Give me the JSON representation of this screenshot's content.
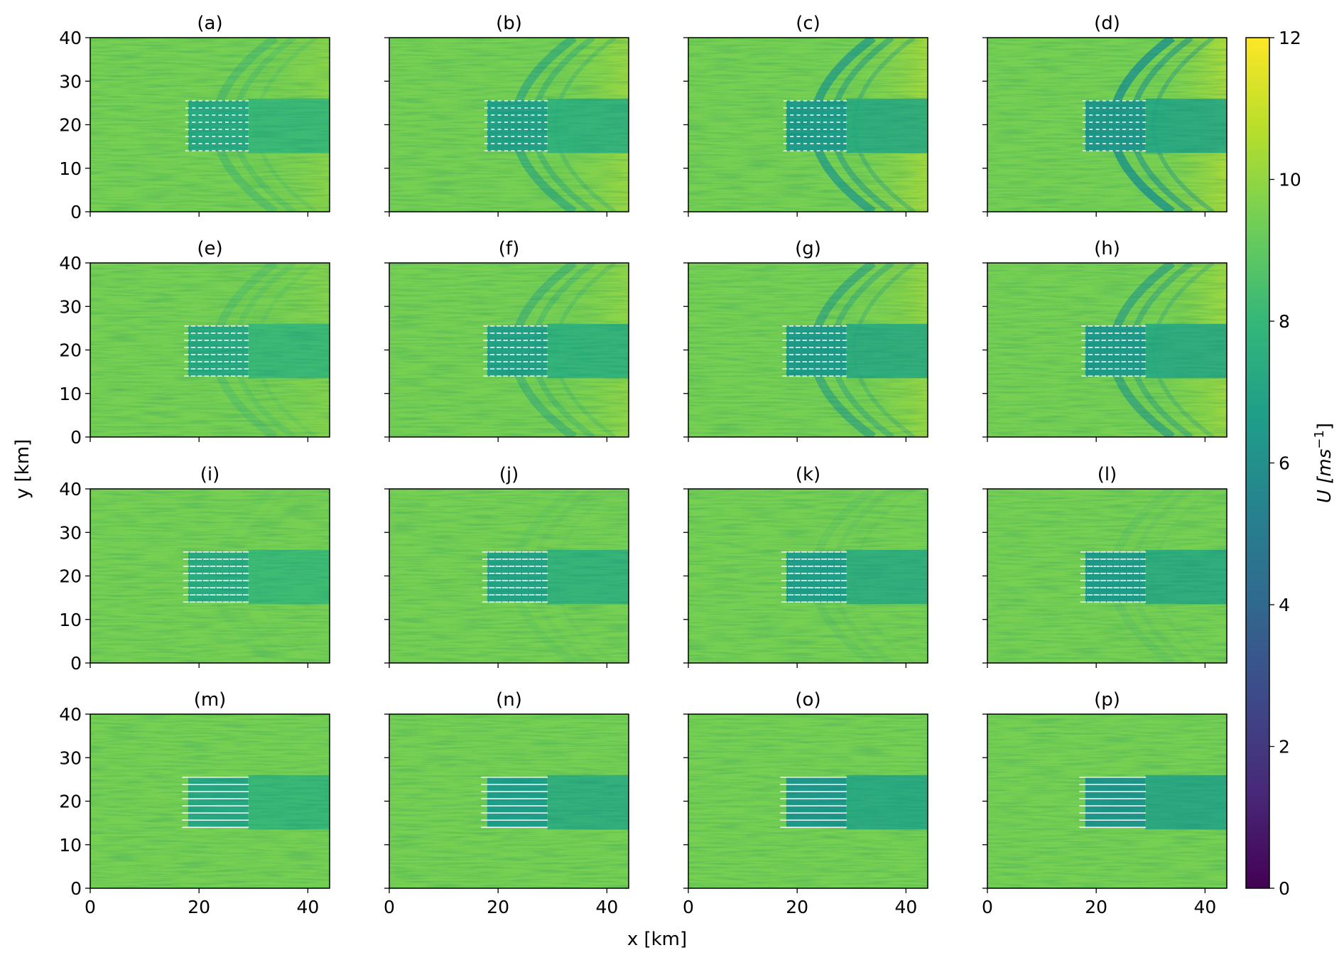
{
  "chart_data": {
    "type": "heatmap",
    "description_kind": "small-multiples",
    "grid": false,
    "xlabel": "x [km]",
    "ylabel": "y [km]",
    "xlim": [
      0,
      44
    ],
    "ylim": [
      0,
      40
    ],
    "x_ticks": [
      0,
      20,
      40
    ],
    "y_ticks": [
      0,
      10,
      20,
      30,
      40
    ],
    "colorbar": {
      "label": "U [ms-1]",
      "label_base": "U",
      "label_unit_main": "ms",
      "label_unit_exp": "−1",
      "range": [
        0,
        12
      ],
      "ticks": [
        0,
        2,
        4,
        6,
        8,
        10,
        12
      ],
      "colormap": "viridis",
      "stops": [
        "#440154",
        "#482878",
        "#3e4989",
        "#31688e",
        "#26828e",
        "#1f9e89",
        "#35b779",
        "#6ece58",
        "#b5de2b",
        "#fde725"
      ]
    },
    "farm": {
      "x_range": [
        18,
        29
      ],
      "y_range": [
        14,
        25.5
      ],
      "cols": 10,
      "rows": 8
    },
    "background_speed": 9.5,
    "panels": [
      {
        "label": "(a)",
        "row": 0,
        "col": 0,
        "wake_speed": 7.6,
        "wave_strength": 0.35
      },
      {
        "label": "(b)",
        "row": 0,
        "col": 1,
        "wake_speed": 7.2,
        "wave_strength": 0.6
      },
      {
        "label": "(c)",
        "row": 0,
        "col": 2,
        "wake_speed": 6.9,
        "wave_strength": 0.8
      },
      {
        "label": "(d)",
        "row": 0,
        "col": 3,
        "wake_speed": 6.7,
        "wave_strength": 0.9
      },
      {
        "label": "(e)",
        "row": 1,
        "col": 0,
        "wake_speed": 7.6,
        "wave_strength": 0.25
      },
      {
        "label": "(f)",
        "row": 1,
        "col": 1,
        "wake_speed": 7.2,
        "wave_strength": 0.45
      },
      {
        "label": "(g)",
        "row": 1,
        "col": 2,
        "wake_speed": 6.9,
        "wave_strength": 0.6
      },
      {
        "label": "(h)",
        "row": 1,
        "col": 3,
        "wake_speed": 6.8,
        "wave_strength": 0.65
      },
      {
        "label": "(i)",
        "row": 2,
        "col": 0,
        "wake_speed": 7.7,
        "wave_strength": 0.05
      },
      {
        "label": "(j)",
        "row": 2,
        "col": 1,
        "wake_speed": 7.3,
        "wave_strength": 0.1
      },
      {
        "label": "(k)",
        "row": 2,
        "col": 2,
        "wake_speed": 7.0,
        "wave_strength": 0.12
      },
      {
        "label": "(l)",
        "row": 2,
        "col": 3,
        "wake_speed": 6.9,
        "wave_strength": 0.12
      },
      {
        "label": "(m)",
        "row": 3,
        "col": 0,
        "wake_speed": 7.5,
        "wave_strength": 0.0
      },
      {
        "label": "(n)",
        "row": 3,
        "col": 1,
        "wake_speed": 7.0,
        "wave_strength": 0.0
      },
      {
        "label": "(o)",
        "row": 3,
        "col": 2,
        "wake_speed": 6.7,
        "wave_strength": 0.0
      },
      {
        "label": "(p)",
        "row": 3,
        "col": 3,
        "wake_speed": 6.6,
        "wave_strength": 0.0
      }
    ]
  }
}
